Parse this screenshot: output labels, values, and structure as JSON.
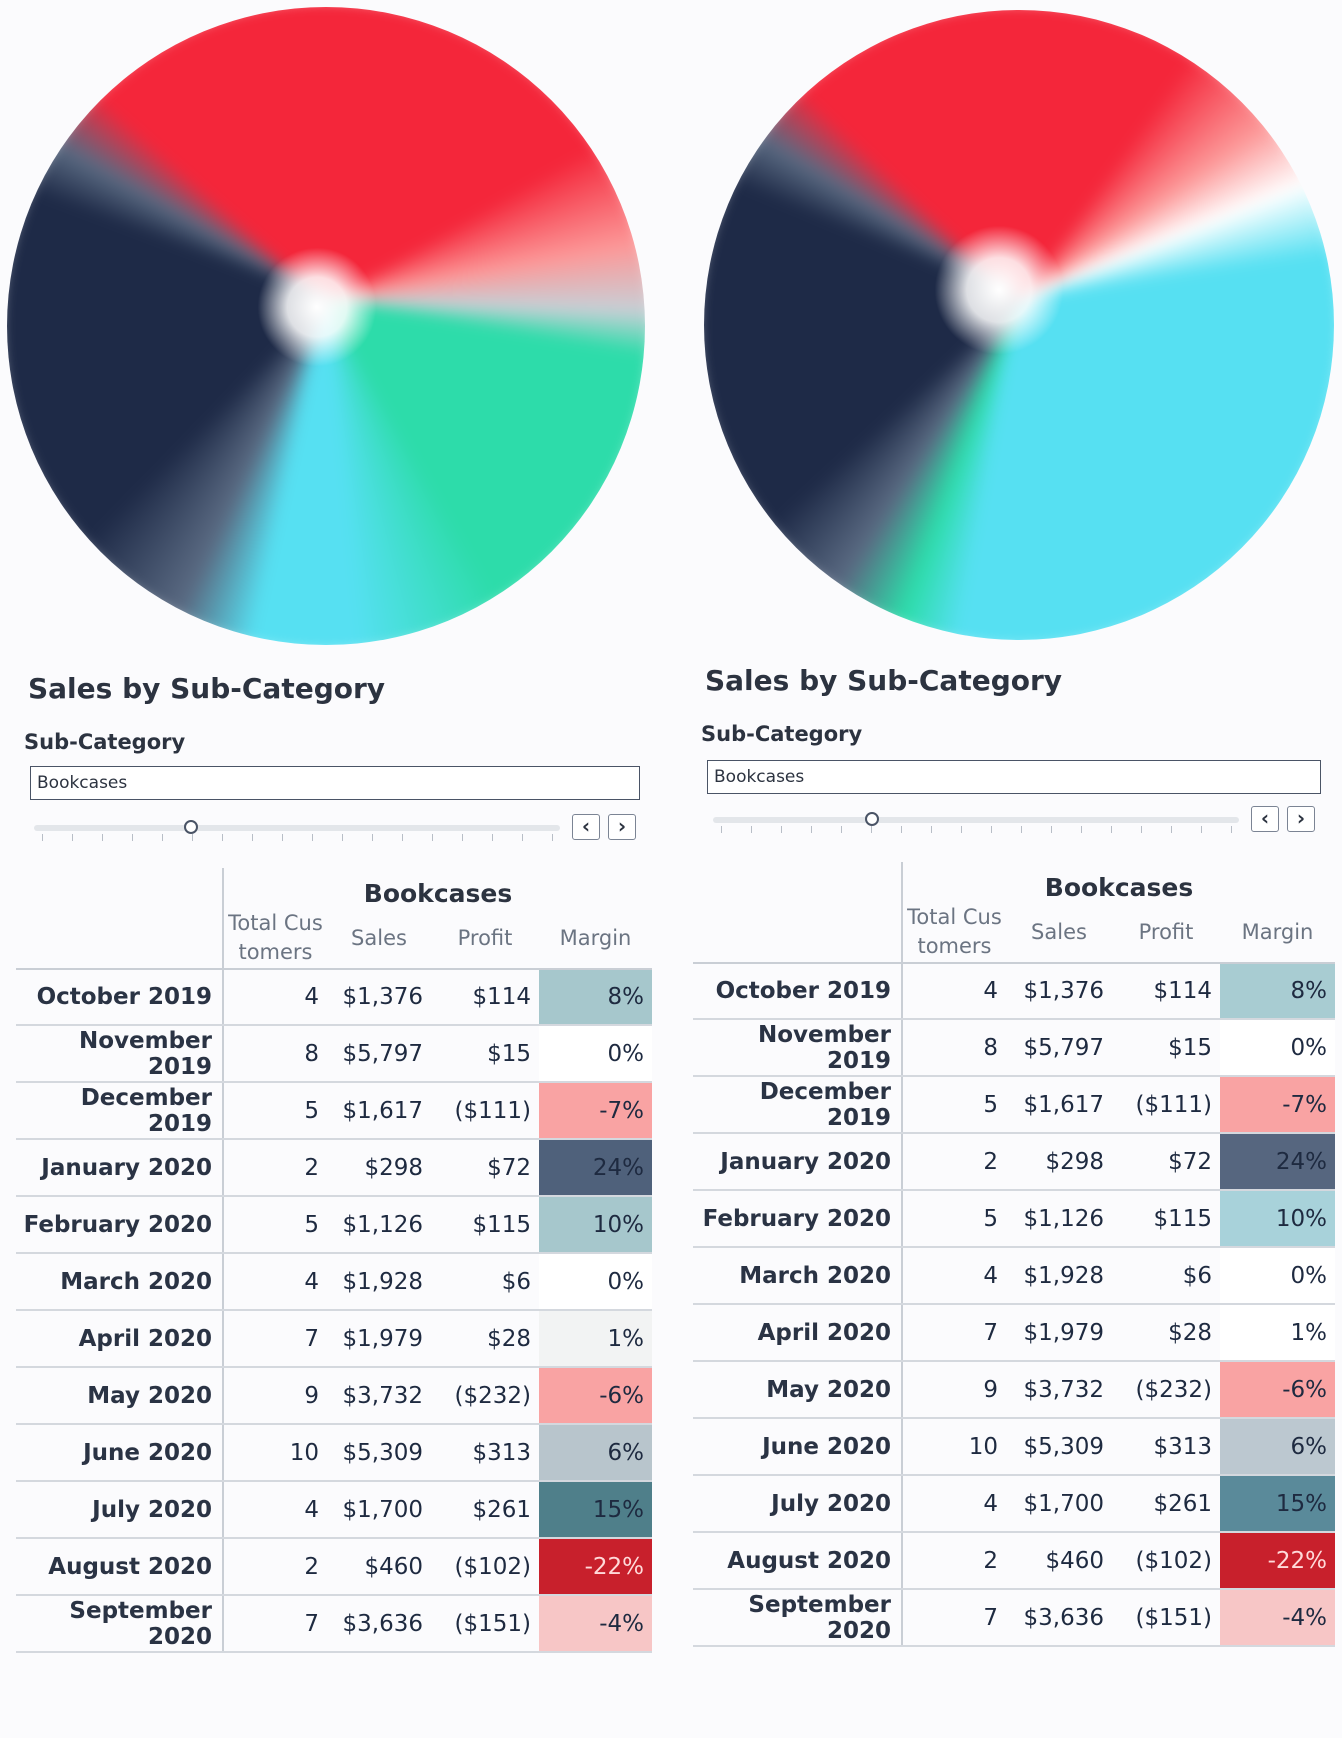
{
  "panels": [
    {
      "chart_title": "Sales by Sub-Category",
      "filter_label": "Sub-Category",
      "filter_value": "Bookcases",
      "prev_label": "‹",
      "next_label": "›",
      "wheel": {
        "colors": [
          "#f4263a",
          "#fc9999",
          "#c8cfd6",
          "#2ddcaa",
          "#56e0f2",
          "#5a6a82",
          "#1e2a47"
        ]
      },
      "table": {
        "group_header": "Bookcases",
        "columns": {
          "customers": "Total Cus tomers",
          "sales": "Sales",
          "profit": "Profit",
          "margin": "Margin"
        },
        "rows": [
          {
            "month": "October 2019",
            "customers": "4",
            "sales": "$1,376",
            "profit": "$114",
            "margin": "8%",
            "margin_bg": "#a6c7cc",
            "margin_fg": "#1e2a40"
          },
          {
            "month": "November 2019",
            "customers": "8",
            "sales": "$5,797",
            "profit": "$15",
            "margin": "0%",
            "margin_bg": "#ffffff",
            "margin_fg": "#1e2a40"
          },
          {
            "month": "December 2019",
            "customers": "5",
            "sales": "$1,617",
            "profit": "($111)",
            "margin": "-7%",
            "margin_bg": "#f9a3a3",
            "margin_fg": "#1e2a40"
          },
          {
            "month": "January 2020",
            "customers": "2",
            "sales": "$298",
            "profit": "$72",
            "margin": "24%",
            "margin_bg": "#4f617b",
            "margin_fg": "#1e2a40"
          },
          {
            "month": "February 2020",
            "customers": "5",
            "sales": "$1,126",
            "profit": "$115",
            "margin": "10%",
            "margin_bg": "#a6c7cc",
            "margin_fg": "#1e2a40"
          },
          {
            "month": "March 2020",
            "customers": "4",
            "sales": "$1,928",
            "profit": "$6",
            "margin": "0%",
            "margin_bg": "#ffffff",
            "margin_fg": "#1e2a40"
          },
          {
            "month": "April 2020",
            "customers": "7",
            "sales": "$1,979",
            "profit": "$28",
            "margin": "1%",
            "margin_bg": "#f2f3f3",
            "margin_fg": "#1e2a40"
          },
          {
            "month": "May 2020",
            "customers": "9",
            "sales": "$3,732",
            "profit": "($232)",
            "margin": "-6%",
            "margin_bg": "#f9a3a3",
            "margin_fg": "#1e2a40"
          },
          {
            "month": "June 2020",
            "customers": "10",
            "sales": "$5,309",
            "profit": "$313",
            "margin": "6%",
            "margin_bg": "#b8c5cc",
            "margin_fg": "#1e2a40"
          },
          {
            "month": "July 2020",
            "customers": "4",
            "sales": "$1,700",
            "profit": "$261",
            "margin": "15%",
            "margin_bg": "#4f7f8a",
            "margin_fg": "#1e2a40"
          },
          {
            "month": "August 2020",
            "customers": "2",
            "sales": "$460",
            "profit": "($102)",
            "margin": "-22%",
            "margin_bg": "#c8202c",
            "margin_fg": "#ffd9d9"
          },
          {
            "month": "September 2020",
            "customers": "7",
            "sales": "$3,636",
            "profit": "($151)",
            "margin": "-4%",
            "margin_bg": "#f7c6c6",
            "margin_fg": "#1e2a40"
          }
        ]
      }
    },
    {
      "chart_title": "Sales by Sub-Category",
      "filter_label": "Sub-Category",
      "filter_value": "Bookcases",
      "prev_label": "‹",
      "next_label": "›",
      "wheel": {
        "colors": [
          "#f4263a",
          "#fc9999",
          "#ffffff",
          "#56e0f2",
          "#2ddcaa",
          "#5a6a82",
          "#1e2a47"
        ]
      },
      "table": {
        "group_header": "Bookcases",
        "columns": {
          "customers": "Total Cus tomers",
          "sales": "Sales",
          "profit": "Profit",
          "margin": "Margin"
        },
        "rows": [
          {
            "month": "October 2019",
            "customers": "4",
            "sales": "$1,376",
            "profit": "$114",
            "margin": "8%",
            "margin_bg": "#a8ccd2",
            "margin_fg": "#1e2a40"
          },
          {
            "month": "November 2019",
            "customers": "8",
            "sales": "$5,797",
            "profit": "$15",
            "margin": "0%",
            "margin_bg": "#ffffff",
            "margin_fg": "#1e2a40"
          },
          {
            "month": "December 2019",
            "customers": "5",
            "sales": "$1,617",
            "profit": "($111)",
            "margin": "-7%",
            "margin_bg": "#f9a3a3",
            "margin_fg": "#1e2a40"
          },
          {
            "month": "January 2020",
            "customers": "2",
            "sales": "$298",
            "profit": "$72",
            "margin": "24%",
            "margin_bg": "#56667f",
            "margin_fg": "#1e2a40"
          },
          {
            "month": "February 2020",
            "customers": "5",
            "sales": "$1,126",
            "profit": "$115",
            "margin": "10%",
            "margin_bg": "#a8d2da",
            "margin_fg": "#1e2a40"
          },
          {
            "month": "March 2020",
            "customers": "4",
            "sales": "$1,928",
            "profit": "$6",
            "margin": "0%",
            "margin_bg": "#ffffff",
            "margin_fg": "#1e2a40"
          },
          {
            "month": "April 2020",
            "customers": "7",
            "sales": "$1,979",
            "profit": "$28",
            "margin": "1%",
            "margin_bg": "#ffffff",
            "margin_fg": "#1e2a40"
          },
          {
            "month": "May 2020",
            "customers": "9",
            "sales": "$3,732",
            "profit": "($232)",
            "margin": "-6%",
            "margin_bg": "#f9a3a3",
            "margin_fg": "#1e2a40"
          },
          {
            "month": "June 2020",
            "customers": "10",
            "sales": "$5,309",
            "profit": "$313",
            "margin": "6%",
            "margin_bg": "#bcc8d0",
            "margin_fg": "#1e2a40"
          },
          {
            "month": "July 2020",
            "customers": "4",
            "sales": "$1,700",
            "profit": "$261",
            "margin": "15%",
            "margin_bg": "#5a8a9a",
            "margin_fg": "#1e2a40"
          },
          {
            "month": "August 2020",
            "customers": "2",
            "sales": "$460",
            "profit": "($102)",
            "margin": "-22%",
            "margin_bg": "#c8202c",
            "margin_fg": "#ffd9d9"
          },
          {
            "month": "September 2020",
            "customers": "7",
            "sales": "$3,636",
            "profit": "($151)",
            "margin": "-4%",
            "margin_bg": "#f7c6c6",
            "margin_fg": "#1e2a40"
          }
        ]
      }
    }
  ],
  "chart_data": [
    {
      "type": "table",
      "title": "Sales by Sub-Category",
      "filter": {
        "Sub-Category": "Bookcases"
      },
      "columns": [
        "Total Customers",
        "Sales",
        "Profit",
        "Margin"
      ],
      "rows": [
        "October 2019",
        "November 2019",
        "December 2019",
        "January 2020",
        "February 2020",
        "March 2020",
        "April 2020",
        "May 2020",
        "June 2020",
        "July 2020",
        "August 2020",
        "September 2020"
      ],
      "customers": [
        4,
        8,
        5,
        2,
        5,
        4,
        7,
        9,
        10,
        4,
        2,
        7
      ],
      "sales": [
        1376,
        5797,
        1617,
        298,
        1126,
        1928,
        1979,
        3732,
        5309,
        1700,
        460,
        3636
      ],
      "profit": [
        114,
        15,
        -111,
        72,
        115,
        6,
        28,
        -232,
        313,
        261,
        -102,
        -151
      ],
      "margin_pct": [
        8,
        0,
        -7,
        24,
        10,
        0,
        1,
        -6,
        6,
        15,
        -22,
        -4
      ]
    },
    {
      "type": "table",
      "title": "Sales by Sub-Category",
      "filter": {
        "Sub-Category": "Bookcases"
      },
      "columns": [
        "Total Customers",
        "Sales",
        "Profit",
        "Margin"
      ],
      "rows": [
        "October 2019",
        "November 2019",
        "December 2019",
        "January 2020",
        "February 2020",
        "March 2020",
        "April 2020",
        "May 2020",
        "June 2020",
        "July 2020",
        "August 2020",
        "September 2020"
      ],
      "customers": [
        4,
        8,
        5,
        2,
        5,
        4,
        7,
        9,
        10,
        4,
        2,
        7
      ],
      "sales": [
        1376,
        5797,
        1617,
        298,
        1126,
        1928,
        1979,
        3732,
        5309,
        1700,
        460,
        3636
      ],
      "profit": [
        114,
        15,
        -111,
        72,
        115,
        6,
        28,
        -232,
        313,
        261,
        -102,
        -151
      ],
      "margin_pct": [
        8,
        0,
        -7,
        24,
        10,
        0,
        1,
        -6,
        6,
        15,
        -22,
        -4
      ]
    }
  ]
}
